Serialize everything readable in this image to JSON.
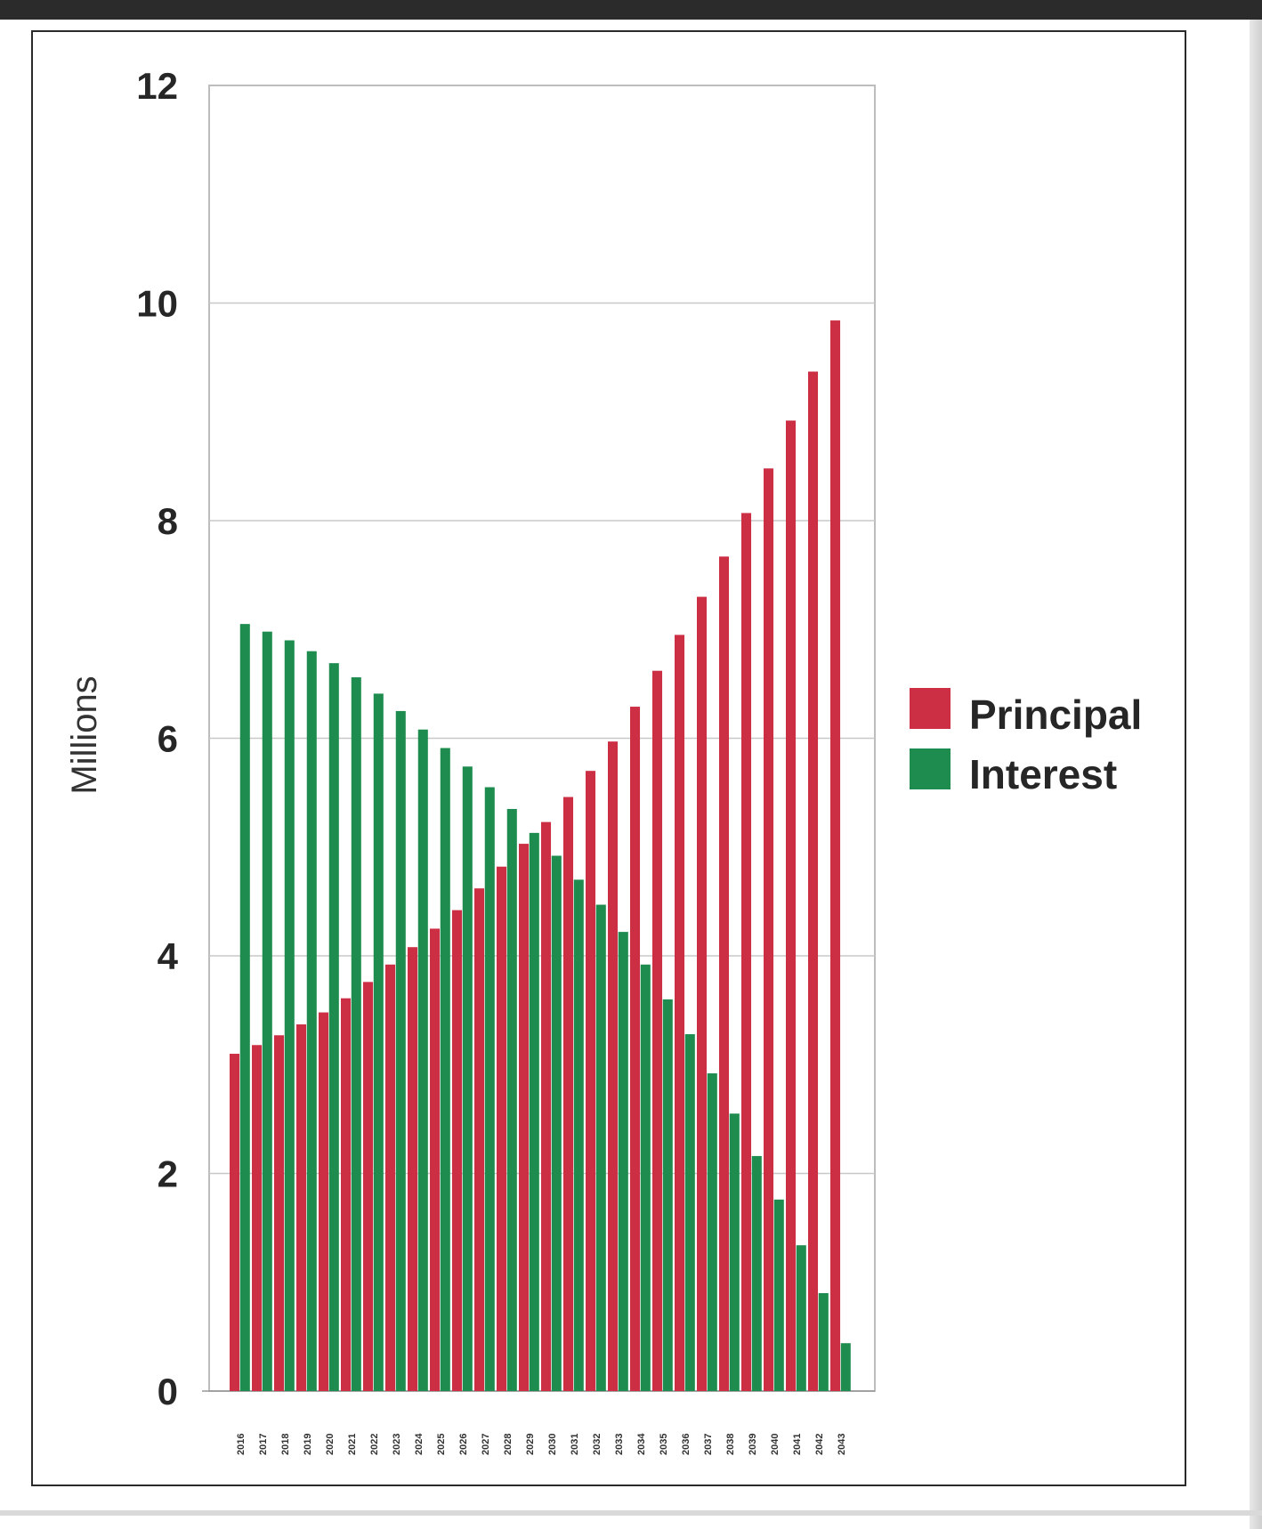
{
  "colors": {
    "principal": "#cc2f44",
    "interest": "#1e8c4e",
    "grid": "#c8c8c8",
    "plot_border": "#bdbdbd"
  },
  "chart_data": {
    "type": "bar",
    "ylabel": "Millions",
    "ylim": [
      0,
      12
    ],
    "yticks": [
      0,
      2,
      4,
      6,
      8,
      10,
      12
    ],
    "grid": true,
    "legend_position": "right",
    "categories": [
      "2016",
      "2017",
      "2018",
      "2019",
      "2020",
      "2021",
      "2022",
      "2023",
      "2024",
      "2025",
      "2026",
      "2027",
      "2028",
      "2029",
      "2030",
      "2031",
      "2032",
      "2033",
      "2034",
      "2035",
      "2036",
      "2037",
      "2038",
      "2039",
      "2040",
      "2041",
      "2042",
      "2043"
    ],
    "series": [
      {
        "name": "Principal",
        "color": "#cc2f44",
        "values": [
          3.1,
          3.18,
          3.27,
          3.37,
          3.48,
          3.61,
          3.76,
          3.92,
          4.08,
          4.25,
          4.42,
          4.62,
          4.82,
          5.03,
          5.23,
          5.46,
          5.7,
          5.97,
          6.29,
          6.62,
          6.95,
          7.3,
          7.67,
          8.07,
          8.48,
          8.92,
          9.37,
          9.84
        ]
      },
      {
        "name": "Interest",
        "color": "#1e8c4e",
        "values": [
          7.05,
          6.98,
          6.9,
          6.8,
          6.69,
          6.56,
          6.41,
          6.25,
          6.08,
          5.91,
          5.74,
          5.55,
          5.35,
          5.13,
          4.92,
          4.7,
          4.47,
          4.22,
          3.92,
          3.6,
          3.28,
          2.92,
          2.55,
          2.16,
          1.76,
          1.34,
          0.9,
          0.44
        ]
      }
    ]
  }
}
